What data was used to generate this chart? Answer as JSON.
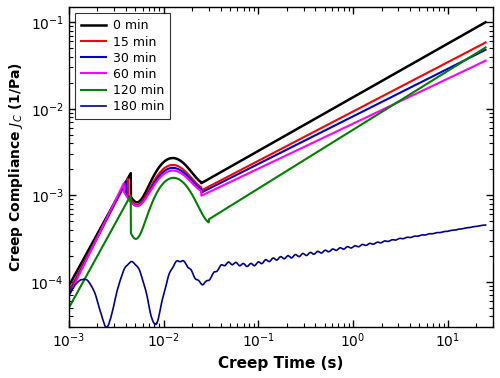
{
  "xlabel": "Creep Time (s)",
  "ylabel": "Creep Compliance $J_C$ (1/Pa)",
  "xmin": 0.001,
  "xmax": 30,
  "ymin": 3e-05,
  "ymax": 0.15,
  "legend_labels": [
    "0 min",
    "15 min",
    "30 min",
    "60 min",
    "120 min",
    "180 min"
  ],
  "colors": [
    "black",
    "#FF0000",
    "#0000CD",
    "#FF00FF",
    "#008000",
    "#00008B"
  ],
  "linewidths": [
    1.8,
    1.5,
    1.5,
    1.5,
    1.5,
    1.2
  ],
  "seed": 42
}
